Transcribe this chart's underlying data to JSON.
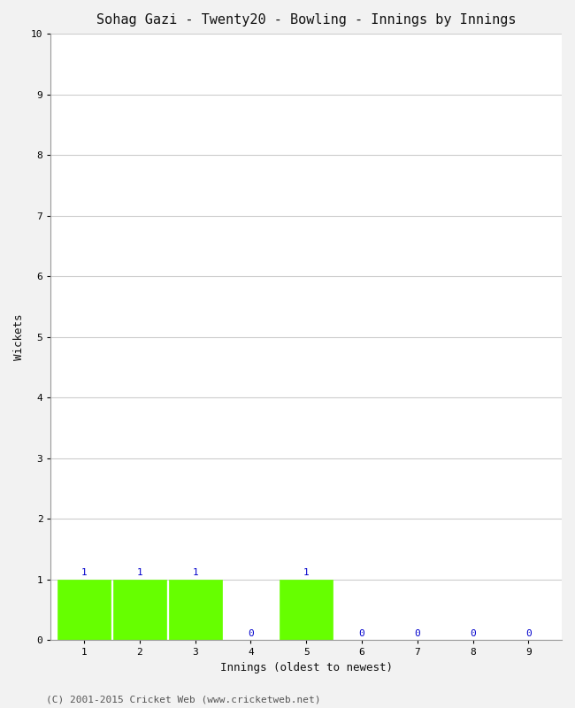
{
  "title": "Sohag Gazi - Twenty20 - Bowling - Innings by Innings",
  "xlabel": "Innings (oldest to newest)",
  "ylabel": "Wickets",
  "categories": [
    1,
    2,
    3,
    4,
    5,
    6,
    7,
    8,
    9
  ],
  "values": [
    1,
    1,
    1,
    0,
    1,
    0,
    0,
    0,
    0
  ],
  "bar_color": "#66ff00",
  "bar_edge_color": "#66ff00",
  "ylim": [
    0,
    10
  ],
  "yticks": [
    0,
    1,
    2,
    3,
    4,
    5,
    6,
    7,
    8,
    9,
    10
  ],
  "xticks": [
    1,
    2,
    3,
    4,
    5,
    6,
    7,
    8,
    9
  ],
  "label_color": "#0000cc",
  "label_fontsize": 8,
  "title_fontsize": 11,
  "axis_label_fontsize": 9,
  "tick_fontsize": 8,
  "background_color": "#f2f2f2",
  "plot_bg_color": "#ffffff",
  "grid_color": "#cccccc",
  "footer_text": "(C) 2001-2015 Cricket Web (www.cricketweb.net)",
  "footer_fontsize": 8,
  "footer_color": "#555555",
  "bar_width": 0.95
}
